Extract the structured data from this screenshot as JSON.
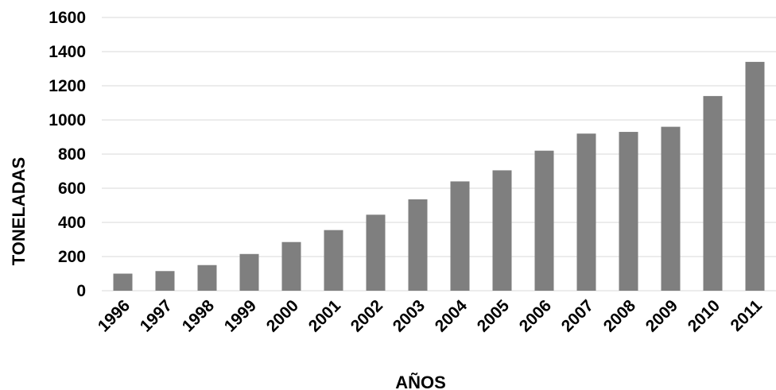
{
  "chart_data": {
    "type": "bar",
    "title": "",
    "xlabel": "AÑOS",
    "ylabel": "TONELADAS",
    "ylim": [
      0,
      1600
    ],
    "yticks": [
      0,
      200,
      400,
      600,
      800,
      1000,
      1200,
      1400,
      1600
    ],
    "grid": true,
    "legend": "none",
    "bar_color": "#7f7f7f",
    "grid_color": "#d9d9d9",
    "categories": [
      "1996",
      "1997",
      "1998",
      "1999",
      "2000",
      "2001",
      "2002",
      "2003",
      "2004",
      "2005",
      "2006",
      "2007",
      "2008",
      "2009",
      "2010",
      "2011"
    ],
    "values": [
      100,
      115,
      150,
      215,
      285,
      355,
      445,
      535,
      640,
      705,
      820,
      920,
      930,
      960,
      1140,
      1340
    ]
  }
}
